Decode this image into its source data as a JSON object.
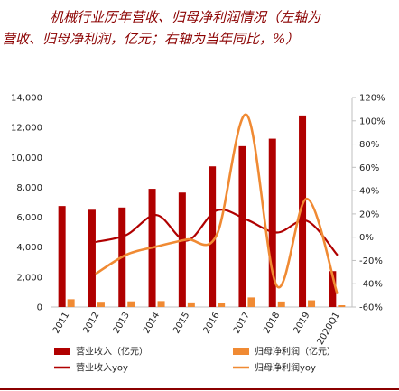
{
  "title": {
    "line1": "机械行业历年营收、归母净利润情况（左轴为",
    "line2": "营收、归母净利润，亿元；右轴为当年同比，%）"
  },
  "colors": {
    "revenue": "#b00000",
    "profit": "#f08a33",
    "title": "#8b0000",
    "axis": "#bfbfbf"
  },
  "chart_data": {
    "type": "bar",
    "title": "机械行业历年营收、归母净利润情况（左轴为营收、归母净利润，亿元；右轴为当年同比，%）",
    "categories": [
      "2011",
      "2012",
      "2013",
      "2014",
      "2015",
      "2016",
      "2017",
      "2018",
      "2019",
      "2020Q1"
    ],
    "y_left": {
      "ylim": [
        0,
        14000
      ],
      "ticks": [
        0,
        2000,
        4000,
        6000,
        8000,
        10000,
        12000,
        14000
      ],
      "tick_labels": [
        "0",
        "2,000",
        "4,000",
        "6,000",
        "8,000",
        "10,000",
        "12,000",
        "14,000"
      ]
    },
    "y_right": {
      "ylim": [
        -60,
        120
      ],
      "ticks": [
        -60,
        -40,
        -20,
        0,
        20,
        40,
        60,
        80,
        100,
        120
      ],
      "tick_labels": [
        "-60%",
        "-40%",
        "-20%",
        "0%",
        "20%",
        "40%",
        "60%",
        "80%",
        "100%",
        "120%"
      ]
    },
    "series": [
      {
        "name": "营业收入（亿元）",
        "kind": "bar",
        "axis": "left",
        "color": "#b00000",
        "values": [
          6750,
          6500,
          6650,
          7900,
          7650,
          9400,
          10750,
          11250,
          12800,
          2400
        ]
      },
      {
        "name": "归母净利润（亿元）",
        "kind": "bar",
        "axis": "left",
        "color": "#f08a33",
        "values": [
          520,
          350,
          380,
          400,
          310,
          270,
          640,
          370,
          450,
          120
        ]
      },
      {
        "name": "营业收入yoy",
        "kind": "line",
        "axis": "right",
        "color": "#b00000",
        "values": [
          null,
          -4,
          2,
          19,
          -3,
          23,
          15,
          4,
          14,
          -15
        ]
      },
      {
        "name": "归母净利润yoy",
        "kind": "line",
        "axis": "right",
        "color": "#f08a33",
        "values": [
          null,
          -31,
          -15,
          -8,
          -2,
          2,
          105,
          -42,
          33,
          -48
        ]
      }
    ],
    "grid": false,
    "legend": "bottom"
  }
}
